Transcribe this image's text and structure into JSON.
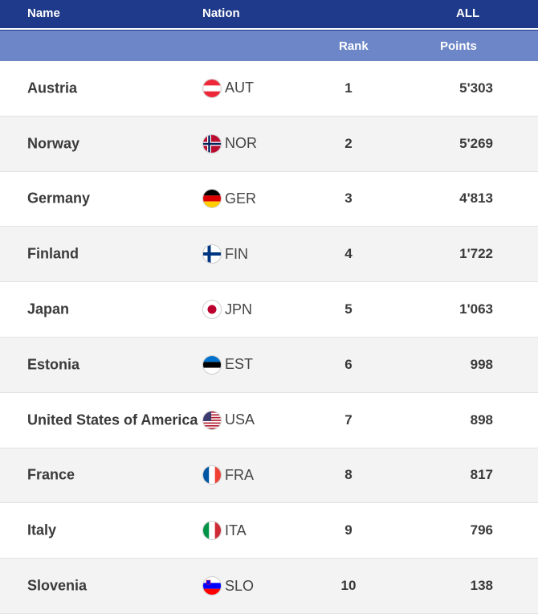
{
  "header": {
    "name_label": "Name",
    "nation_label": "Nation",
    "all_label": "ALL",
    "rank_label": "Rank",
    "points_label": "Points"
  },
  "rows": [
    {
      "name": "Austria",
      "code": "AUT",
      "rank": "1",
      "points": "5'303",
      "flag": "aut-flag-icon"
    },
    {
      "name": "Norway",
      "code": "NOR",
      "rank": "2",
      "points": "5'269",
      "flag": "nor-flag-icon"
    },
    {
      "name": "Germany",
      "code": "GER",
      "rank": "3",
      "points": "4'813",
      "flag": "ger-flag-icon"
    },
    {
      "name": "Finland",
      "code": "FIN",
      "rank": "4",
      "points": "1'722",
      "flag": "fin-flag-icon"
    },
    {
      "name": "Japan",
      "code": "JPN",
      "rank": "5",
      "points": "1'063",
      "flag": "jpn-flag-icon"
    },
    {
      "name": "Estonia",
      "code": "EST",
      "rank": "6",
      "points": "998",
      "flag": "est-flag-icon"
    },
    {
      "name": "United States of America",
      "code": "USA",
      "rank": "7",
      "points": "898",
      "flag": "usa-flag-icon"
    },
    {
      "name": "France",
      "code": "FRA",
      "rank": "8",
      "points": "817",
      "flag": "fra-flag-icon"
    },
    {
      "name": "Italy",
      "code": "ITA",
      "rank": "9",
      "points": "796",
      "flag": "ita-flag-icon"
    },
    {
      "name": "Slovenia",
      "code": "SLO",
      "rank": "10",
      "points": "138",
      "flag": "slo-flag-icon"
    }
  ],
  "colors": {
    "header_dark": "#1f3a8a",
    "header_light": "#6c86c8",
    "row_alt": "#f3f3f3"
  }
}
